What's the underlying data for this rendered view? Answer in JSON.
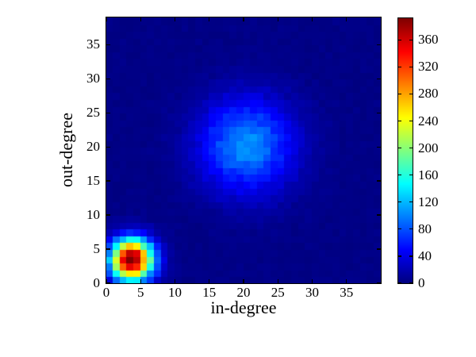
{
  "chart_data": {
    "type": "heatmap",
    "title": "",
    "xlabel": "in-degree",
    "ylabel": "out-degree",
    "x_range": [
      0,
      40
    ],
    "y_range": [
      0,
      39
    ],
    "x_ticks": [
      0,
      5,
      10,
      15,
      20,
      25,
      30,
      35
    ],
    "y_ticks": [
      0,
      5,
      10,
      15,
      20,
      25,
      30,
      35
    ],
    "bins": {
      "x": 40,
      "y": 39
    },
    "colormap": "jet",
    "vmin": 0,
    "vmax": 392,
    "colorbar_ticks": [
      0,
      40,
      80,
      120,
      160,
      200,
      240,
      280,
      320,
      360
    ],
    "colorbar_position": "right",
    "grid": false,
    "legend": null,
    "distribution": {
      "description": "2D degree histogram with two gaussian clusters",
      "clusters": [
        {
          "center_x": 3.8,
          "center_y": 3.5,
          "sigma": 2.1,
          "peak": 400
        },
        {
          "center_x": 20.5,
          "center_y": 20.3,
          "sigma": 4.7,
          "peak": 104
        }
      ],
      "noise_seed": 7
    },
    "colors": {
      "min_color": "#000080",
      "max_color": "#800000",
      "figure_background": "#ffffff",
      "axis_color": "#000000"
    }
  }
}
